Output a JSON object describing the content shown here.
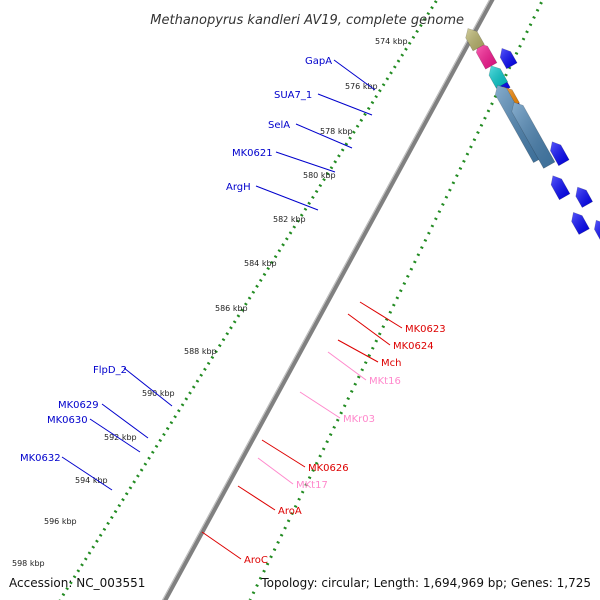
{
  "title": "Methanopyrus kandleri AV19, complete genome",
  "accession": "Accession: NC_003551",
  "summary": "Topology: circular; Length: 1,694,969 bp; Genes: 1,725",
  "kbp_ticks": [
    {
      "label": "574 kbp",
      "value": 574
    },
    {
      "label": "576 kbp",
      "value": 576
    },
    {
      "label": "578 kbp",
      "value": 578
    },
    {
      "label": "580 kbp",
      "value": 580
    },
    {
      "label": "582 kbp",
      "value": 582
    },
    {
      "label": "584 kbp",
      "value": 584
    },
    {
      "label": "586 kbp",
      "value": 586
    },
    {
      "label": "588 kbp",
      "value": 588
    },
    {
      "label": "590 kbp",
      "value": 590
    },
    {
      "label": "592 kbp",
      "value": 592
    },
    {
      "label": "594 kbp",
      "value": 594
    },
    {
      "label": "596 kbp",
      "value": 596
    },
    {
      "label": "598 kbp",
      "value": 598
    }
  ],
  "forward_genes": [
    {
      "name": "GapA",
      "color": "#ff1493"
    },
    {
      "name": "SUA7_1",
      "color": "#00ced1"
    },
    {
      "name": "SelA",
      "color": "#ff8c00"
    },
    {
      "name": "MK0621",
      "color": "#4682b4"
    },
    {
      "name": "ArgH",
      "color": "#4682b4"
    },
    {
      "name": "FlpD_2",
      "color": "#00ffff"
    },
    {
      "name": "MK0629",
      "color": "#c0c0c0"
    },
    {
      "name": "MK0630",
      "color": "#c0c0c0"
    },
    {
      "name": "MK0632",
      "color": "#c0c0c0"
    }
  ],
  "reverse_genes": [
    {
      "name": "MK0623",
      "color": "#4682b4"
    },
    {
      "name": "MK0624",
      "color": "#696969"
    },
    {
      "name": "Mch",
      "color": "#ff0000"
    },
    {
      "name": "MKt16",
      "color": "#ff99cc"
    },
    {
      "name": "MKr03",
      "color": "#ff99cc"
    },
    {
      "name": "MK0626",
      "color": "#ff0000"
    },
    {
      "name": "MKt17",
      "color": "#ff99cc"
    },
    {
      "name": "AroA",
      "color": "#ff0000"
    },
    {
      "name": "AroC",
      "color": "#ff0000"
    }
  ],
  "colors": {
    "backbone": "#808080",
    "gc_skew": "#228b22",
    "forward_label": "#0000cc",
    "reverse_label": "#dd0000",
    "rna_label": "#ff88cc",
    "cds_forward": "#0000ff",
    "cds_reverse": "#ff0000"
  }
}
